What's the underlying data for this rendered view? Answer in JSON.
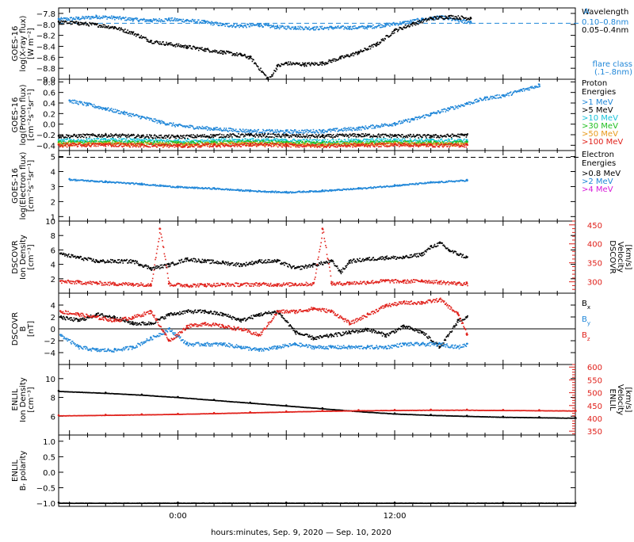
{
  "xaxis": {
    "label": "hours:minutes, Sep.  9, 2020 — Sep. 10, 2020",
    "range_hours": [
      -6.6,
      22.0
    ],
    "ticks": [
      {
        "value": 0,
        "label": "0:00"
      },
      {
        "value": 12,
        "label": "12:00"
      }
    ]
  },
  "colors": {
    "black": "#000000",
    "blue": "#1f86d8",
    "cyan": "#19c2d8",
    "green": "#1fbf1f",
    "orange": "#e89a1a",
    "red": "#e0201a",
    "magenta": "#d81ad8"
  },
  "chart_data": [
    {
      "id": "xray",
      "type": "scatter",
      "ylabel": [
        "GOES-16",
        "log(X-ray flux)",
        "[W m⁻²]"
      ],
      "ylim": [
        -9.0,
        -7.7
      ],
      "yticks": [
        -7.8,
        -8.0,
        -8.2,
        -8.4,
        -8.6,
        -8.8,
        -9.0
      ],
      "ytick_labels": [
        "−7.8",
        "−8.0",
        "−8.2",
        "−8.4",
        "−8.6",
        "−8.8",
        "−9.0"
      ],
      "legend": {
        "title": [
          "Wavelength"
        ],
        "entries": [
          {
            "label": "0.10–0.8nm",
            "color": "blue"
          },
          {
            "label": "0.05–0.4nm",
            "color": "black"
          }
        ],
        "extra": [
          "flare class",
          "(.1–.8nm)"
        ],
        "extra_marker": "A"
      },
      "reference_line": {
        "y": -7.98,
        "color": "blue"
      },
      "series": [
        {
          "color": "blue",
          "x": [
            -6.6,
            -5.5,
            -4.5,
            -3.5,
            -2.5,
            -1.5,
            -0.5,
            0.5,
            1.5,
            2.5,
            3.5,
            4.5,
            5.0,
            5.5,
            6.5,
            7.5,
            8.5,
            9.5,
            10.5,
            11.5,
            12.5,
            13.5,
            14.5,
            15.5,
            16.2
          ],
          "y": [
            -7.9,
            -7.88,
            -7.85,
            -7.87,
            -7.9,
            -7.92,
            -7.9,
            -7.92,
            -7.95,
            -8.0,
            -8.02,
            -8.0,
            -8.02,
            -8.04,
            -8.05,
            -8.06,
            -8.05,
            -8.05,
            -8.04,
            -8.0,
            -7.96,
            -7.9,
            -7.86,
            -7.92,
            -7.95
          ]
        },
        {
          "color": "black",
          "x": [
            -6.6,
            -5.5,
            -4.5,
            -3.5,
            -2.5,
            -1.5,
            -0.5,
            0.5,
            1.5,
            2.5,
            3.5,
            4.0,
            5.0,
            5.5,
            6.0,
            7.0,
            8.0,
            9.0,
            10.0,
            11.0,
            12.0,
            13.0,
            14.0,
            15.0,
            16.2
          ],
          "y": [
            -7.95,
            -7.97,
            -8.0,
            -8.05,
            -8.15,
            -8.3,
            -8.35,
            -8.4,
            -8.45,
            -8.5,
            -8.55,
            -8.6,
            -9.0,
            -8.75,
            -8.7,
            -8.72,
            -8.7,
            -8.6,
            -8.5,
            -8.35,
            -8.1,
            -7.98,
            -7.88,
            -7.85,
            -7.88
          ]
        }
      ]
    },
    {
      "id": "proton",
      "type": "scatter",
      "ylabel": [
        "GOES-16",
        "log(Proton flux)",
        "[cm⁻²s⁻¹sr⁻¹]"
      ],
      "ylim": [
        -0.5,
        0.85
      ],
      "yticks": [
        0.8,
        0.6,
        0.4,
        0.2,
        0.0,
        -0.2,
        -0.4
      ],
      "ytick_labels": [
        "0.8",
        "0.6",
        "0.4",
        "0.2",
        "0.0",
        "−0.2",
        "−0.4"
      ],
      "legend": {
        "title": [
          "Proton",
          "Energies"
        ],
        "entries": [
          {
            "label": ">1 MeV",
            "color": "blue"
          },
          {
            "label": ">5 MeV",
            "color": "black"
          },
          {
            "label": ">10 MeV",
            "color": "cyan"
          },
          {
            "label": ">30 MeV",
            "color": "green"
          },
          {
            "label": ">50 MeV",
            "color": "orange"
          },
          {
            "label": ">100 MeV",
            "color": "red"
          }
        ]
      },
      "series": [
        {
          "color": "blue",
          "x": [
            -6.0,
            -5.0,
            -4.0,
            -3.0,
            -2.0,
            -1.0,
            0.0,
            2.0,
            4.0,
            6.0,
            8.0,
            10.0,
            12.0,
            13.0,
            14.0,
            15.0,
            16.0,
            17.0,
            18.0,
            19.0,
            20.0
          ],
          "y": [
            0.45,
            0.38,
            0.3,
            0.22,
            0.14,
            0.05,
            -0.02,
            -0.08,
            -0.12,
            -0.13,
            -0.12,
            -0.07,
            0.02,
            0.1,
            0.2,
            0.3,
            0.4,
            0.5,
            0.55,
            0.65,
            0.75
          ]
        },
        {
          "color": "black",
          "x": [
            -6.6,
            -4.0,
            -2.0,
            0.0,
            2.0,
            4.0,
            6.0,
            8.0,
            10.0,
            12.0,
            14.0,
            16.0
          ],
          "y": [
            -0.22,
            -0.2,
            -0.22,
            -0.23,
            -0.21,
            -0.2,
            -0.21,
            -0.22,
            -0.2,
            -0.21,
            -0.22,
            -0.2
          ]
        },
        {
          "color": "cyan",
          "x": [
            -6.6,
            -4.0,
            -2.0,
            0.0,
            2.0,
            4.0,
            6.0,
            8.0,
            10.0,
            12.0,
            14.0,
            16.0
          ],
          "y": [
            -0.3,
            -0.29,
            -0.3,
            -0.31,
            -0.3,
            -0.29,
            -0.3,
            -0.31,
            -0.3,
            -0.29,
            -0.3,
            -0.3
          ]
        },
        {
          "color": "green",
          "x": [
            -6.6,
            -4.0,
            -2.0,
            0.0,
            2.0,
            4.0,
            6.0,
            8.0,
            10.0,
            12.0,
            14.0,
            16.0
          ],
          "y": [
            -0.34,
            -0.33,
            -0.34,
            -0.35,
            -0.34,
            -0.33,
            -0.34,
            -0.35,
            -0.34,
            -0.33,
            -0.34,
            -0.34
          ]
        },
        {
          "color": "orange",
          "x": [
            -6.6,
            -4.0,
            -2.0,
            0.0,
            2.0,
            4.0,
            6.0,
            8.0,
            10.0,
            12.0,
            14.0,
            16.0
          ],
          "y": [
            -0.37,
            -0.36,
            -0.37,
            -0.38,
            -0.37,
            -0.36,
            -0.37,
            -0.38,
            -0.37,
            -0.36,
            -0.37,
            -0.37
          ]
        },
        {
          "color": "red",
          "x": [
            -6.6,
            -4.0,
            -2.0,
            0.0,
            2.0,
            4.0,
            6.0,
            8.0,
            10.0,
            12.0,
            14.0,
            16.0
          ],
          "y": [
            -0.39,
            -0.38,
            -0.39,
            -0.4,
            -0.39,
            -0.38,
            -0.39,
            -0.4,
            -0.39,
            -0.38,
            -0.39,
            -0.39
          ]
        }
      ]
    },
    {
      "id": "electron",
      "type": "scatter",
      "ylabel": [
        "GOES-16",
        "log(Electron flux)",
        "[cm⁻²s⁻¹sr⁻¹]"
      ],
      "ylim": [
        0.7,
        5.4
      ],
      "yticks": [
        5,
        4,
        3,
        2,
        1
      ],
      "ytick_labels": [
        "5",
        "4",
        "3",
        "2",
        "1"
      ],
      "legend": {
        "title": [
          "Electron",
          "Energies"
        ],
        "entries": [
          {
            "label": ">0.8 MeV",
            "color": "black"
          },
          {
            "label": ">2 MeV",
            "color": "blue"
          },
          {
            "label": ">4 MeV",
            "color": "magenta"
          }
        ]
      },
      "reference_line": {
        "y": 4.95,
        "color": "black"
      },
      "series": [
        {
          "color": "blue",
          "x": [
            -6.0,
            -4.0,
            -2.0,
            0.0,
            2.0,
            4.0,
            6.0,
            8.0,
            10.0,
            12.0,
            14.0,
            16.0
          ],
          "y": [
            3.5,
            3.35,
            3.2,
            3.0,
            2.9,
            2.75,
            2.65,
            2.75,
            2.9,
            3.1,
            3.3,
            3.45
          ]
        }
      ]
    },
    {
      "id": "dscovr_density",
      "type": "line",
      "ylabel": [
        "DSCOVR",
        "Ion Density",
        "[cm⁻³]"
      ],
      "ylim": [
        0,
        10
      ],
      "yticks": [
        10,
        8,
        6,
        4,
        2
      ],
      "ytick_labels": [
        "10",
        "8",
        "6",
        "4",
        "2"
      ],
      "right_axis": {
        "label": [
          "DSCOVR",
          "Velocity",
          "[km/s]"
        ],
        "ylim": [
          270,
          460
        ],
        "ticks": [
          450,
          400,
          350,
          300
        ],
        "tick_labels": [
          "450",
          "400",
          "350",
          "300"
        ],
        "color": "red"
      },
      "series": [
        {
          "color": "black",
          "axis": "left",
          "x": [
            -6.5,
            -5.5,
            -4.5,
            -3.5,
            -2.5,
            -1.5,
            -0.5,
            0.5,
            1.5,
            2.5,
            3.5,
            4.5,
            5.5,
            6.5,
            7.5,
            8.5,
            9.0,
            9.5,
            10.5,
            11.5,
            12.5,
            13.5,
            14.0,
            14.5,
            15.0,
            16.0
          ],
          "y": [
            5.5,
            5.0,
            4.5,
            4.5,
            4.5,
            3.5,
            4.0,
            4.8,
            4.5,
            4.3,
            4.0,
            4.5,
            4.5,
            3.5,
            4.0,
            4.5,
            3.0,
            4.5,
            4.8,
            5.0,
            5.0,
            5.5,
            6.5,
            7.0,
            6.0,
            5.0
          ]
        },
        {
          "color": "red",
          "axis": "right",
          "x": [
            -6.5,
            -5.5,
            -4.5,
            -3.5,
            -2.5,
            -1.5,
            -1.0,
            -0.5,
            0.5,
            1.5,
            2.5,
            3.5,
            4.5,
            5.5,
            6.5,
            7.5,
            8.0,
            8.5,
            9.5,
            10.5,
            11.5,
            12.5,
            13.5,
            14.5,
            15.5,
            16.0
          ],
          "y": [
            302,
            300,
            298,
            296,
            295,
            294,
            440,
            295,
            292,
            293,
            294,
            294,
            295,
            294,
            295,
            296,
            440,
            296,
            298,
            300,
            304,
            302,
            304,
            300,
            297,
            296
          ]
        }
      ]
    },
    {
      "id": "dscovr_b",
      "type": "line",
      "ylabel": [
        "DSCOVR",
        "B",
        "[nT]"
      ],
      "ylim": [
        -6,
        6
      ],
      "yticks": [
        4,
        2,
        0,
        -2,
        -4
      ],
      "ytick_labels": [
        "4",
        "2",
        "0",
        "−2",
        "−4"
      ],
      "zero_line": true,
      "legend": {
        "entries": [
          {
            "label": "B",
            "sub": "x",
            "color": "black"
          },
          {
            "label": "B",
            "sub": "y",
            "color": "blue"
          },
          {
            "label": "B",
            "sub": "z",
            "color": "red"
          }
        ]
      },
      "series": [
        {
          "color": "black",
          "x": [
            -6.5,
            -5.5,
            -4.5,
            -3.5,
            -2.5,
            -1.5,
            -0.5,
            0.5,
            1.5,
            2.5,
            3.5,
            4.5,
            5.5,
            6.5,
            7.5,
            8.5,
            9.5,
            10.5,
            11.5,
            12.5,
            13.5,
            14.5,
            15.5,
            16.0
          ],
          "y": [
            2.0,
            1.5,
            2.5,
            2.0,
            1.0,
            1.0,
            2.5,
            3.0,
            3.0,
            2.5,
            1.5,
            2.5,
            3.0,
            -0.5,
            -1.5,
            -1.0,
            -0.5,
            0.0,
            -1.0,
            0.5,
            -0.5,
            -3.0,
            1.5,
            2.0
          ]
        },
        {
          "color": "blue",
          "x": [
            -6.5,
            -5.5,
            -4.5,
            -3.5,
            -2.5,
            -1.5,
            -0.5,
            0.5,
            1.5,
            2.5,
            3.5,
            4.5,
            5.5,
            6.5,
            7.5,
            8.5,
            9.5,
            10.5,
            11.5,
            12.5,
            13.5,
            14.5,
            15.5,
            16.0
          ],
          "y": [
            -1.0,
            -3.0,
            -3.5,
            -3.5,
            -3.0,
            -1.5,
            0.0,
            -2.5,
            -2.5,
            -2.5,
            -3.0,
            -3.5,
            -3.0,
            -2.5,
            -3.0,
            -3.0,
            -3.0,
            -3.0,
            -3.0,
            -2.5,
            -2.5,
            -2.5,
            -3.0,
            -2.5
          ]
        },
        {
          "color": "red",
          "x": [
            -6.5,
            -5.5,
            -4.5,
            -3.5,
            -2.5,
            -1.5,
            -0.5,
            0.5,
            1.5,
            2.5,
            3.5,
            4.5,
            5.5,
            6.5,
            7.5,
            8.5,
            9.5,
            10.5,
            11.5,
            12.5,
            13.5,
            14.5,
            15.5,
            16.0
          ],
          "y": [
            3.0,
            2.5,
            2.0,
            1.5,
            2.0,
            3.0,
            -2.0,
            0.5,
            1.0,
            0.5,
            0.0,
            -1.0,
            3.0,
            3.0,
            3.5,
            3.0,
            1.0,
            2.5,
            4.0,
            4.5,
            4.5,
            5.0,
            2.5,
            -1.0
          ]
        }
      ]
    },
    {
      "id": "enlil_density",
      "type": "line",
      "ylabel": [
        "ENLIL",
        "Ion Density",
        "[cm⁻³]"
      ],
      "ylim": [
        4,
        11.5
      ],
      "yticks": [
        10,
        8,
        6
      ],
      "ytick_labels": [
        "10",
        "8",
        "6"
      ],
      "right_axis": {
        "label": [
          "ENLIL",
          "Velocity",
          "[km/s]"
        ],
        "ylim": [
          335,
          610
        ],
        "ticks": [
          600,
          550,
          500,
          450,
          400,
          350
        ],
        "tick_labels": [
          "600",
          "550",
          "500",
          "450",
          "400",
          "350"
        ],
        "color": "red"
      },
      "series": [
        {
          "color": "black",
          "axis": "left",
          "x": [
            -6.6,
            -4.0,
            -2.0,
            0.0,
            2.0,
            4.0,
            6.0,
            8.0,
            10.0,
            12.0,
            14.0,
            16.0,
            18.0,
            20.0,
            22.0
          ],
          "y": [
            8.7,
            8.5,
            8.3,
            8.05,
            7.75,
            7.45,
            7.15,
            6.85,
            6.55,
            6.3,
            6.15,
            6.05,
            5.95,
            5.9,
            5.85
          ]
        },
        {
          "color": "red",
          "axis": "right",
          "x": [
            -6.6,
            -4.0,
            -2.0,
            0.0,
            2.0,
            4.0,
            6.0,
            8.0,
            10.0,
            12.0,
            14.0,
            16.0,
            18.0,
            20.0,
            22.0
          ],
          "y": [
            412,
            414,
            416,
            418,
            421,
            424,
            427,
            430,
            432,
            433,
            434,
            434,
            433,
            432,
            431
          ]
        }
      ]
    },
    {
      "id": "enlil_polarity",
      "type": "line",
      "ylabel": [
        "ENLIL",
        "Bᵣ polarity"
      ],
      "ylim": [
        -1.1,
        1.2
      ],
      "yticks": [
        1.0,
        0.5,
        0.0,
        -0.5,
        -1.0
      ],
      "ytick_labels": [
        "1.0",
        "0.5",
        "0.0",
        "−0.5",
        "−1.0"
      ],
      "series": [
        {
          "color": "black",
          "x": [
            -6.6,
            0.0,
            6.0,
            12.0,
            18.0,
            22.0
          ],
          "y": [
            -0.98,
            -0.98,
            -0.98,
            -0.98,
            -0.98,
            -0.98
          ]
        }
      ]
    }
  ]
}
